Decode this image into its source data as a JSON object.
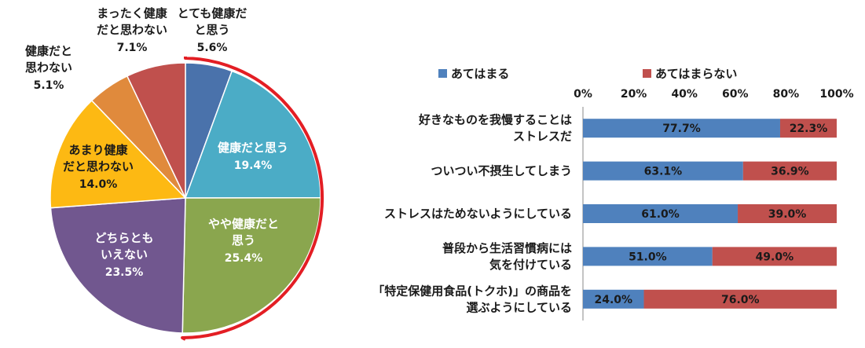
{
  "chart_data": [
    {
      "type": "pie",
      "slices": [
        {
          "label": "とても健康だと思う",
          "label_lines": [
            "とても健康だ",
            "と思う"
          ],
          "value": 5.6,
          "value_label": "5.6%",
          "color": "#4a72ab"
        },
        {
          "label": "健康だと思う",
          "label_lines": [
            "健康だと思う"
          ],
          "value": 19.4,
          "value_label": "19.4%",
          "color": "#4bacc6"
        },
        {
          "label": "やや健康だと思う",
          "label_lines": [
            "やや健康だと",
            "思う"
          ],
          "value": 25.4,
          "value_label": "25.4%",
          "color": "#8aa64e"
        },
        {
          "label": "どちらともいえない",
          "label_lines": [
            "どちらとも",
            "いえない"
          ],
          "value": 23.5,
          "value_label": "23.5%",
          "color": "#71578f"
        },
        {
          "label": "あまり健康だと思わない",
          "label_lines": [
            "あまり健康",
            "だと思わない"
          ],
          "value": 14.0,
          "value_label": "14.0%",
          "color": "#fdb913"
        },
        {
          "label": "健康だと思わない",
          "label_lines": [
            "健康だと",
            "思わない"
          ],
          "value": 5.1,
          "value_label": "5.1%",
          "color": "#e08a3c"
        },
        {
          "label": "まったく健康だと思わない",
          "label_lines": [
            "まったく健康",
            "だと思わない"
          ],
          "value": 7.1,
          "value_label": "7.1%",
          "color": "#c0504d"
        }
      ],
      "highlight": "とても健康だと思う + 健康だと思う + やや健康だと思う",
      "highlight_color": "#e31e24"
    },
    {
      "type": "bar",
      "orientation": "horizontal",
      "stacked": true,
      "categories": [
        [
          "好きなものを我慢することは",
          "ストレスだ"
        ],
        [
          "ついつい不摂生してしまう"
        ],
        [
          "ストレスはためないようにしている"
        ],
        [
          "普段から生活習慣病には",
          "気を付けている"
        ],
        [
          "「特定保健用食品(トクホ)」の商品を",
          "選ぶようにしている"
        ]
      ],
      "series": [
        {
          "name": "あてはまる",
          "color": "#4f81bd",
          "values": [
            77.7,
            63.1,
            61.0,
            51.0,
            24.0
          ],
          "value_labels": [
            "77.7%",
            "63.1%",
            "61.0%",
            "51.0%",
            "24.0%"
          ]
        },
        {
          "name": "あてはまらない",
          "color": "#c0504d",
          "values": [
            22.3,
            36.9,
            39.0,
            49.0,
            76.0
          ],
          "value_labels": [
            "22.3%",
            "36.9%",
            "39.0%",
            "49.0%",
            "76.0%"
          ]
        }
      ],
      "x_ticks": [
        "0%",
        "20%",
        "40%",
        "60%",
        "80%",
        "100%"
      ],
      "xlim": [
        0,
        100
      ],
      "legend_position": "top"
    }
  ]
}
